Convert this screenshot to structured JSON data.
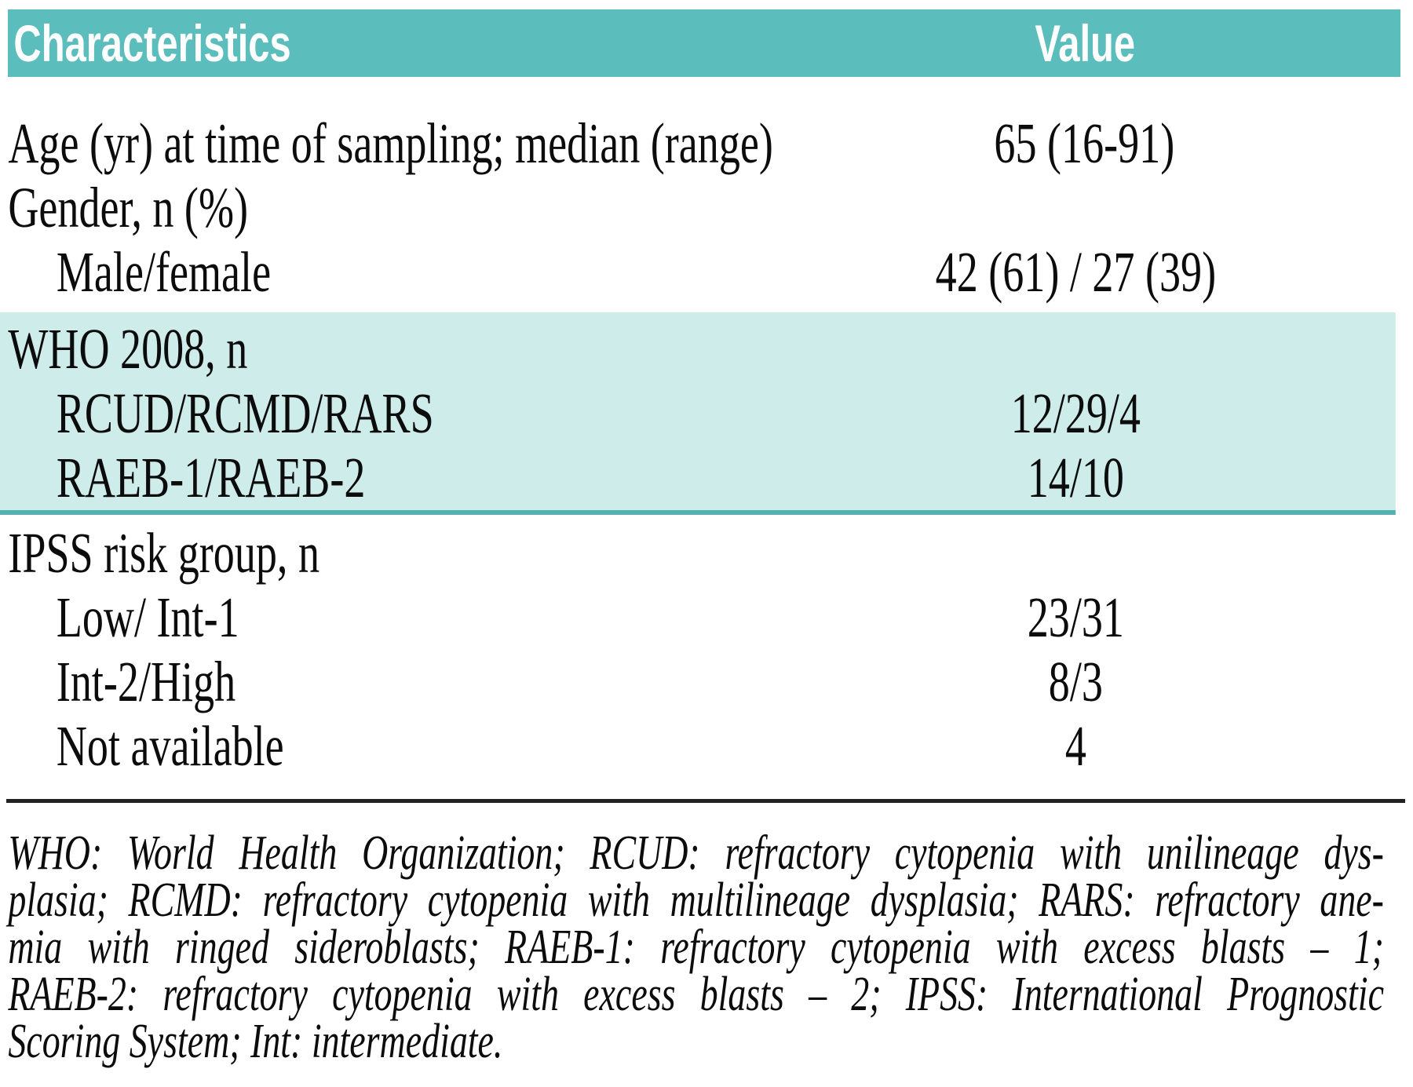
{
  "table": {
    "columns": [
      {
        "label": "Characteristics"
      },
      {
        "label": "Value"
      }
    ],
    "rows": [
      {
        "label": "Age (yr) at time of sampling; median (range)",
        "value": "65 (16-91)",
        "indent": false,
        "highlighted": false
      },
      {
        "label": "Gender, n (%)",
        "value": "",
        "indent": false,
        "highlighted": false
      },
      {
        "label": "Male/female",
        "value": "42 (61) / 27 (39)",
        "indent": true,
        "highlighted": false
      },
      {
        "label": "WHO 2008, n",
        "value": "",
        "indent": false,
        "highlighted": true
      },
      {
        "label": "RCUD/RCMD/RARS",
        "value": "12/29/4",
        "indent": true,
        "highlighted": true
      },
      {
        "label": "RAEB-1/RAEB-2",
        "value": "14/10",
        "indent": true,
        "highlighted": true
      },
      {
        "label": "IPSS risk group, n",
        "value": "",
        "indent": false,
        "highlighted": false
      },
      {
        "label": "Low/ Int-1",
        "value": "23/31",
        "indent": true,
        "highlighted": false
      },
      {
        "label": "Int-2/High",
        "value": "8/3",
        "indent": true,
        "highlighted": false
      },
      {
        "label": "Not available",
        "value": "4",
        "indent": true,
        "highlighted": false
      }
    ]
  },
  "footnote": {
    "lines": [
      "WHO: World Health Organization; RCUD: refractory cytopenia with unilineage dys-",
      "plasia; RCMD: refractory cytopenia with multilineage dysplasia; RARS: refractory ane-",
      "mia with ringed sideroblasts; RAEB-1: refractory cytopenia with excess blasts – 1;",
      "RAEB-2: refractory cytopenia with excess blasts – 2; IPSS: International Prognostic",
      "Scoring System; Int: intermediate."
    ]
  },
  "colors": {
    "header_bg": "#5cbdbd",
    "header_text": "#ffffff",
    "highlight_bg": "#cdecea",
    "highlight_border": "#55b1b1",
    "divider": "#222222",
    "body_text": "#0c0c0c"
  }
}
